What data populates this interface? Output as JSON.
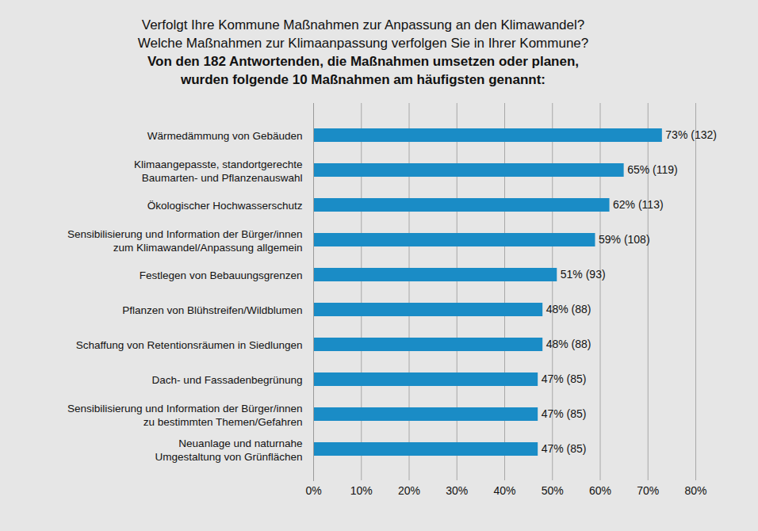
{
  "chart_data": {
    "type": "bar",
    "orientation": "horizontal",
    "title": "Verfolgt Ihre Kommune Maßnahmen zur Anpassung an den Klimawandel?\nWelche Maßnahmen zur Klimaanpassung verfolgen Sie in Ihrer Kommune?",
    "subtitle": "Von den 182 Antwortenden, die Maßnahmen umsetzen oder planen,\nwurden folgende 10 Maßnahmen am häufigsten genannt:",
    "categories": [
      "Wärmedämmung von Gebäuden",
      "Klimaangepasste, standortgerechte\nBaumarten- und Pflanzenauswahl",
      "Ökologischer Hochwasserschutz",
      "Sensibilisierung und Information der Bürger/innen\nzum Klimawandel/Anpassung allgemein",
      "Festlegen von Bebauungsgrenzen",
      "Pflanzen von Blühstreifen/Wildblumen",
      "Schaffung von Retentionsräumen in Siedlungen",
      "Dach- und Fassadenbegrünung",
      "Sensibilisierung und Information der Bürger/innen\nzu bestimmten Themen/Gefahren",
      "Neuanlage und naturnahe\nUmgestaltung von Grünflächen"
    ],
    "values": [
      73,
      65,
      62,
      59,
      51,
      48,
      48,
      47,
      47,
      47
    ],
    "value_labels": [
      "73% (132)",
      "65% (119)",
      "62% (113)",
      "59% (108)",
      "51% (93)",
      "48% (88)",
      "48% (88)",
      "47% (85)",
      "47% (85)",
      "47% (85)"
    ],
    "data_labels": true,
    "color": "#1a8cc6",
    "xlim": [
      0,
      80
    ],
    "xticks": [
      {
        "value": 0,
        "label": "0%"
      },
      {
        "value": 10,
        "label": "10%"
      },
      {
        "value": 20,
        "label": "20%"
      },
      {
        "value": 30,
        "label": "30%"
      },
      {
        "value": 40,
        "label": "40%"
      },
      {
        "value": 50,
        "label": "50%"
      },
      {
        "value": 60,
        "label": "60%"
      },
      {
        "value": 70,
        "label": "70%"
      },
      {
        "value": 80,
        "label": "80%"
      }
    ],
    "grid": true
  }
}
